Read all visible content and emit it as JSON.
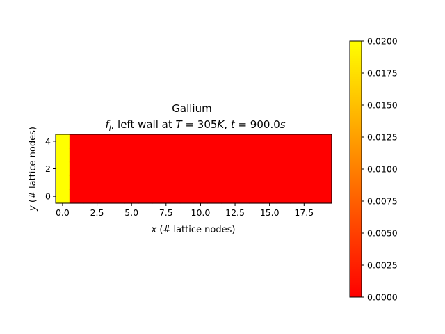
{
  "chart_data": {
    "type": "heatmap",
    "title": {
      "line1": "Gallium",
      "var": "f",
      "var_sub": "l",
      "text_a": ", left wall at ",
      "t_sym": "T",
      "eq1": " = 305",
      "unit_k": "K",
      "sep": ", ",
      "time_sym": "t",
      "eq2": " = 900.0",
      "unit_s": "s"
    },
    "xlabel": {
      "sym": "x",
      "text": " (# lattice nodes)"
    },
    "ylabel": {
      "sym": "y",
      "text": " (# lattice nodes)"
    },
    "grid": {
      "nx": 20,
      "ny": 5
    },
    "xlim": [
      -0.5,
      19.5
    ],
    "ylim": [
      -0.5,
      4.5
    ],
    "x_ticks": [
      0.0,
      2.5,
      5.0,
      7.5,
      10.0,
      12.5,
      15.0,
      17.5
    ],
    "x_tick_labels": [
      "0.0",
      "2.5",
      "5.0",
      "7.5",
      "10.0",
      "12.5",
      "15.0",
      "17.5"
    ],
    "y_ticks": [
      0,
      2,
      4
    ],
    "y_tick_labels": [
      "0",
      "2",
      "4"
    ],
    "column_values": [
      0.02,
      0,
      0,
      0,
      0,
      0,
      0,
      0,
      0,
      0,
      0,
      0,
      0,
      0,
      0,
      0,
      0,
      0,
      0,
      0
    ],
    "colormap": "autumn",
    "colors": {
      "low": "#ff0000",
      "high": "#ffff00"
    },
    "colorbar": {
      "range": [
        0.0,
        0.02
      ],
      "ticks": [
        0.0,
        0.0025,
        0.005,
        0.0075,
        0.01,
        0.0125,
        0.015,
        0.0175,
        0.02
      ],
      "tick_labels": [
        "0.0000",
        "0.0025",
        "0.0050",
        "0.0075",
        "0.0100",
        "0.0125",
        "0.0150",
        "0.0175",
        "0.0200"
      ]
    }
  }
}
